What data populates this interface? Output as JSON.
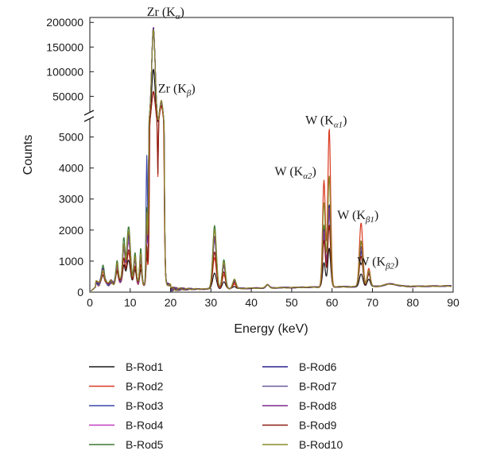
{
  "chart_data": {
    "type": "line",
    "title": "",
    "xlabel": "Energy (keV)",
    "ylabel": "Counts",
    "x_ticks": [
      0,
      10,
      20,
      30,
      40,
      50,
      60,
      70,
      80,
      90
    ],
    "xlim": [
      0,
      90
    ],
    "y_axis_broken": true,
    "ylim_lower": [
      0,
      5500
    ],
    "y_ticks_lower": [
      0,
      1000,
      2000,
      3000,
      4000,
      5000
    ],
    "ylim_upper": [
      20000,
      210000
    ],
    "y_ticks_upper": [
      50000,
      100000,
      150000,
      200000
    ],
    "legend_position": "below-plot",
    "annotations": [
      {
        "main": "Zr (K",
        "sub": "α",
        "close": ")",
        "x": 15.7,
        "y": 200000
      },
      {
        "main": "Zr (K",
        "sub": "β",
        "close": ")",
        "x": 17.7,
        "y": 45000
      },
      {
        "main": "W (K",
        "sub": "α1",
        "close": ")",
        "x": 59.3,
        "y": 5200
      },
      {
        "main": "W (K",
        "sub": "α2",
        "close": ")",
        "x": 58.0,
        "y": 3500
      },
      {
        "main": "W (K",
        "sub": "β1",
        "close": ")",
        "x": 67.2,
        "y": 2100
      },
      {
        "main": "W (K",
        "sub": "β2",
        "close": ")",
        "x": 69.0,
        "y": 650
      }
    ],
    "series": [
      {
        "name": "B-Rod1",
        "color": "#1a1a1a",
        "peaks": {
          "Zr_Ka": 105000,
          "Zr_Kb": 38000,
          "W_Ka1": 1250,
          "W_Ka2": 800,
          "W_Kb1": 400,
          "W_Kb2": 250,
          "low_9": 800,
          "low_31": 500,
          "low_14": 900
        }
      },
      {
        "name": "B-Rod2",
        "color": "#d93a1f",
        "peaks": {
          "Zr_Ka": 58000,
          "Zr_Kb": 30000,
          "W_Ka1": 5100,
          "W_Ka2": 3450,
          "W_Kb1": 2050,
          "W_Kb2": 600,
          "low_9": 1050,
          "low_31": 1000,
          "low_14": 1100
        }
      },
      {
        "name": "B-Rod3",
        "color": "#3a46a8",
        "peaks": {
          "Zr_Ka": 190000,
          "Zr_Kb": 40000,
          "W_Ka1": 2600,
          "W_Ka2": 1800,
          "W_Kb1": 1100,
          "W_Kb2": 450,
          "low_9": 1500,
          "low_31": 1600,
          "low_14": 4100
        }
      },
      {
        "name": "B-Rod4",
        "color": "#c23bc0",
        "peaks": {
          "Zr_Ka": 190000,
          "Zr_Kb": 40000,
          "W_Ka1": 2400,
          "W_Ka2": 1700,
          "W_Kb1": 1300,
          "W_Kb2": 420,
          "low_9": 1400,
          "low_31": 1700,
          "low_14": 1500
        }
      },
      {
        "name": "B-Rod5",
        "color": "#3d7a34",
        "peaks": {
          "Zr_Ka": 188000,
          "Zr_Kb": 41000,
          "W_Ka1": 2500,
          "W_Ka2": 2000,
          "W_Kb1": 1450,
          "W_Kb2": 460,
          "low_9": 1900,
          "low_31": 2050,
          "low_14": 2400
        }
      },
      {
        "name": "B-Rod6",
        "color": "#2c1f8c",
        "peaks": {
          "Zr_Ka": 189000,
          "Zr_Kb": 40000,
          "W_Ka1": 2650,
          "W_Ka2": 1850,
          "W_Kb1": 1150,
          "W_Kb2": 430,
          "low_9": 1600,
          "low_31": 1650,
          "low_14": 1800
        }
      },
      {
        "name": "B-Rod7",
        "color": "#6a5a9e",
        "peaks": {
          "Zr_Ka": 185000,
          "Zr_Kb": 39000,
          "W_Ka1": 2450,
          "W_Ka2": 1750,
          "W_Kb1": 1250,
          "W_Kb2": 440,
          "low_9": 1500,
          "low_31": 1600,
          "low_14": 1600
        }
      },
      {
        "name": "B-Rod8",
        "color": "#7a2a8e",
        "peaks": {
          "Zr_Ka": 187000,
          "Zr_Kb": 40000,
          "W_Ka1": 2550,
          "W_Ka2": 1800,
          "W_Kb1": 1300,
          "W_Kb2": 450,
          "low_9": 1650,
          "low_31": 1700,
          "low_14": 1700
        }
      },
      {
        "name": "B-Rod9",
        "color": "#8e1a12",
        "peaks": {
          "Zr_Ka": 60000,
          "Zr_Kb": 31000,
          "W_Ka1": 2000,
          "W_Ka2": 1500,
          "W_Kb1": 1000,
          "W_Kb2": 400,
          "low_9": 1100,
          "low_31": 1200,
          "low_14": 1200
        }
      },
      {
        "name": "B-Rod10",
        "color": "#8a8a2a",
        "peaks": {
          "Zr_Ka": 186000,
          "Zr_Kb": 42000,
          "W_Ka1": 3600,
          "W_Ka2": 2700,
          "W_Kb1": 1500,
          "W_Kb2": 500,
          "low_9": 1700,
          "low_31": 1900,
          "low_14": 2200
        }
      }
    ]
  }
}
